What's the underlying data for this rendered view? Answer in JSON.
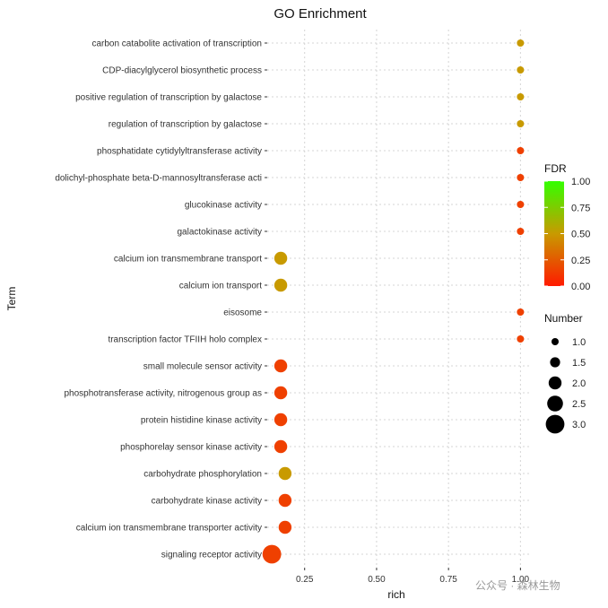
{
  "chart_data": {
    "type": "scatter",
    "title": "GO Enrichment",
    "xlabel": "rich",
    "ylabel": "Term",
    "xlim": [
      0.12,
      1.03
    ],
    "x_ticks": [
      0.25,
      0.5,
      0.75,
      1.0
    ],
    "x_tick_labels": [
      "0.25",
      "0.50",
      "0.75",
      "1.00"
    ],
    "terms": [
      "carbon catabolite activation of transcription",
      "CDP-diacylglycerol biosynthetic process",
      "positive regulation of transcription by galactose",
      "regulation of transcription by galactose",
      "phosphatidate cytidylyltransferase activity",
      "dolichyl-phosphate beta-D-mannosyltransferase acti",
      "glucokinase activity",
      "galactokinase activity",
      "calcium ion transmembrane transport",
      "calcium ion transport",
      "eisosome",
      "transcription factor TFIIH holo complex",
      "small molecule sensor activity",
      "phosphotransferase activity, nitrogenous group as",
      "protein histidine kinase activity",
      "phosphorelay sensor kinase activity",
      "carbohydrate phosphorylation",
      "carbohydrate kinase activity",
      "calcium ion transmembrane transporter activity",
      "signaling receptor activity"
    ],
    "rich": [
      1.0,
      1.0,
      1.0,
      1.0,
      1.0,
      1.0,
      1.0,
      1.0,
      0.167,
      0.167,
      1.0,
      1.0,
      0.167,
      0.167,
      0.167,
      0.167,
      0.182,
      0.182,
      0.182,
      0.136
    ],
    "number": [
      1,
      1,
      1,
      1,
      1,
      1,
      1,
      1,
      2,
      2,
      1,
      1,
      2,
      2,
      2,
      2,
      2,
      2,
      2,
      3
    ],
    "fdr": [
      0.5,
      0.5,
      0.5,
      0.5,
      0.15,
      0.15,
      0.15,
      0.15,
      0.5,
      0.5,
      0.15,
      0.15,
      0.15,
      0.15,
      0.15,
      0.15,
      0.5,
      0.15,
      0.15,
      0.15
    ],
    "color_legend": {
      "title": "FDR",
      "range": [
        0.0,
        1.0
      ],
      "labels": [
        "1.00",
        "0.75",
        "0.50",
        "0.25",
        "0.00"
      ],
      "values": [
        1.0,
        0.75,
        0.5,
        0.25,
        0.0
      ],
      "low_color": "#ff1a00",
      "high_color": "#33ff00"
    },
    "size_legend": {
      "title": "Number",
      "labels": [
        "1.0",
        "1.5",
        "2.0",
        "2.5",
        "3.0"
      ],
      "values": [
        1.0,
        1.5,
        2.0,
        2.5,
        3.0
      ]
    }
  },
  "watermark": "公众号 · 森林生物"
}
